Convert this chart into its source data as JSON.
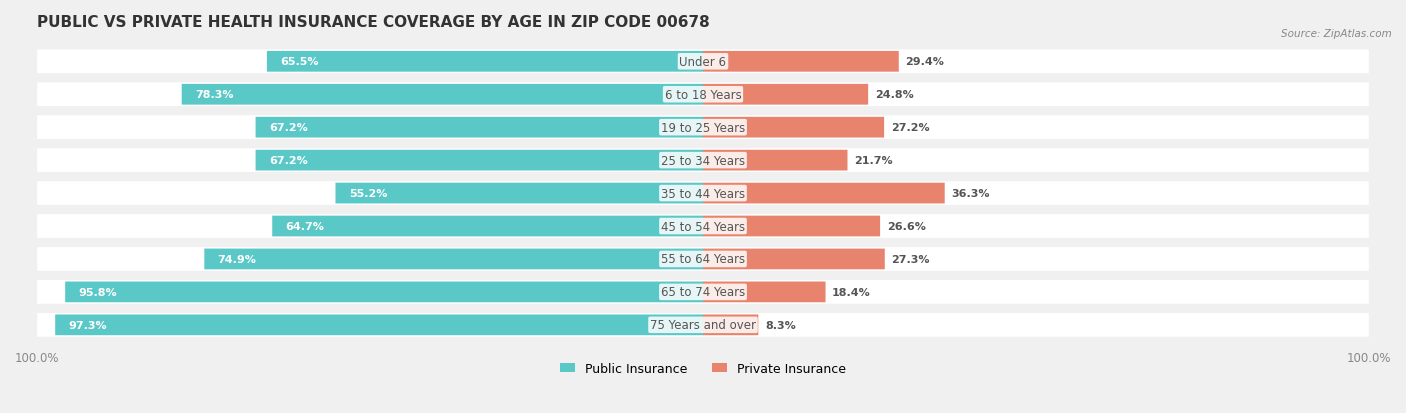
{
  "title": "PUBLIC VS PRIVATE HEALTH INSURANCE COVERAGE BY AGE IN ZIP CODE 00678",
  "source": "Source: ZipAtlas.com",
  "categories": [
    "Under 6",
    "6 to 18 Years",
    "19 to 25 Years",
    "25 to 34 Years",
    "35 to 44 Years",
    "45 to 54 Years",
    "55 to 64 Years",
    "65 to 74 Years",
    "75 Years and over"
  ],
  "public_values": [
    65.5,
    78.3,
    67.2,
    67.2,
    55.2,
    64.7,
    74.9,
    95.8,
    97.3
  ],
  "private_values": [
    29.4,
    24.8,
    27.2,
    21.7,
    36.3,
    26.6,
    27.3,
    18.4,
    8.3
  ],
  "public_color": "#5bc8c8",
  "private_color": "#e8846e",
  "background_color": "#f0f0f0",
  "bar_bg_color": "#ffffff",
  "title_fontsize": 11,
  "label_fontsize": 8.5,
  "value_fontsize": 8,
  "legend_fontsize": 9,
  "bar_height": 0.62,
  "xlim_left": -100,
  "xlim_right": 100,
  "max_public": 100,
  "max_private": 100
}
